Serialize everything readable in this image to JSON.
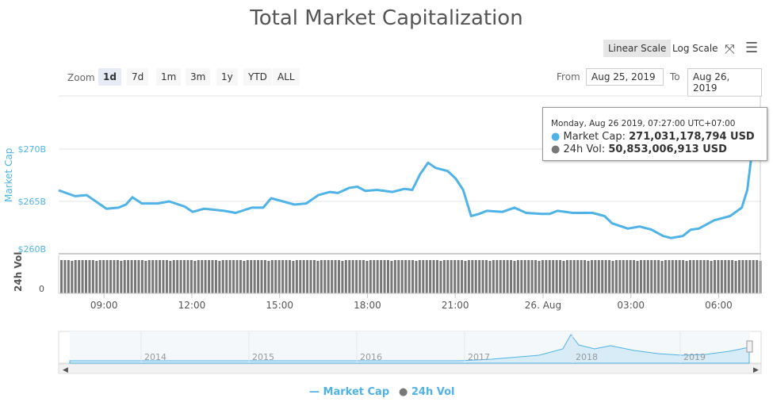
{
  "title": "Total Market Capitalization",
  "scale_buttons": [
    "Linear Scale",
    "Log Scale"
  ],
  "zoom": {
    "label": "Zoom",
    "buttons": [
      "1d",
      "7d",
      "1m",
      "3m",
      "1y",
      "YTD",
      "ALL"
    ],
    "selected": "1d"
  },
  "range": {
    "from_label": "From",
    "from": "Aug 25, 2019",
    "to_label": "To",
    "to": "Aug 26, 2019"
  },
  "tooltip": {
    "date": "Monday, Aug 26 2019, 07:27:00 UTC+07:00",
    "mc_label": "Market Cap: ",
    "mc_value": "271,031,178,794 USD",
    "vol_label": "24h Vol: ",
    "vol_value": "50,853,006,913 USD"
  },
  "legend": [
    "Market Cap",
    "24h Vol"
  ],
  "colors": {
    "line": "#4fb3e8",
    "bars": "#777777"
  },
  "chart_data": {
    "type": "line",
    "title": "Total Market Capitalization",
    "y_axis": {
      "label": "Market Cap",
      "ticks": [
        "$270B",
        "$265B",
        "$260B"
      ],
      "ylim": [
        260,
        272
      ]
    },
    "vol_axis": {
      "label": "24h Vol",
      "ticks": [
        "0"
      ]
    },
    "x_ticks": [
      "09:00",
      "12:00",
      "15:00",
      "18:00",
      "21:00",
      "26. Aug",
      "03:00",
      "06:00"
    ],
    "series": [
      {
        "name": "Market Cap",
        "unit": "B USD",
        "hours_since_start": [
          0,
          0.56,
          0.96,
          1.37,
          1.63,
          2.04,
          2.3,
          2.52,
          2.84,
          3.38,
          3.78,
          4.31,
          4.58,
          4.98,
          5.65,
          6.05,
          6.59,
          6.99,
          7.26,
          7.66,
          8.06,
          8.46,
          8.87,
          9.27,
          9.54,
          9.94,
          10.21,
          10.48,
          10.88,
          11.41,
          11.81,
          12.08,
          12.35,
          12.62,
          12.88,
          13.29,
          13.56,
          13.82,
          14.09,
          14.36,
          14.63,
          15.16,
          15.57,
          15.97,
          16.5,
          16.77,
          17.04,
          17.57,
          18.24,
          18.65,
          18.91,
          19.45,
          19.85,
          20.25,
          20.65,
          20.92,
          21.33,
          21.6,
          21.87,
          22.4,
          22.94,
          23.34,
          23.53,
          23.66,
          23.74
        ],
        "values": [
          266.06,
          265.5,
          265.6,
          264.8,
          264.3,
          264.4,
          264.7,
          265.4,
          264.8,
          264.8,
          265.0,
          264.5,
          264.0,
          264.3,
          264.1,
          263.9,
          264.4,
          264.4,
          265.3,
          265.0,
          264.7,
          264.8,
          265.6,
          265.9,
          265.8,
          266.3,
          266.4,
          266.0,
          266.1,
          265.9,
          266.2,
          266.1,
          267.6,
          268.7,
          268.2,
          267.9,
          267.2,
          266.1,
          263.6,
          263.8,
          264.1,
          264.0,
          264.4,
          263.9,
          263.8,
          263.8,
          264.1,
          263.9,
          263.9,
          263.6,
          262.9,
          262.4,
          262.6,
          262.3,
          261.7,
          261.5,
          261.7,
          262.3,
          262.4,
          263.2,
          263.6,
          264.4,
          266.1,
          269.1,
          271.0
        ]
      },
      {
        "name": "24h Vol",
        "note": "approx. constant ~ 50.8B USD"
      }
    ],
    "navigator": {
      "years": [
        "2014",
        "2015",
        "2016",
        "2017",
        "2018",
        "2019"
      ]
    }
  }
}
